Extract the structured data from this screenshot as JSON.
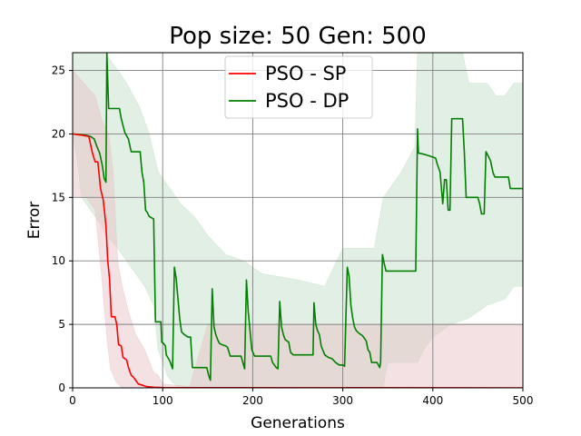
{
  "chart_data": {
    "type": "line",
    "title": "Pop size: 50  Gen: 500",
    "xlabel": "Generations",
    "ylabel": "Error",
    "xlim": [
      0,
      500
    ],
    "ylim": [
      0,
      26.4
    ],
    "xticks": [
      0,
      100,
      200,
      300,
      400,
      500
    ],
    "yticks": [
      0,
      5,
      10,
      15,
      20,
      25
    ],
    "grid": true,
    "legend_position": "top-center",
    "series": [
      {
        "name": "PSO - SP",
        "color": "#ff0000",
        "band_color": "#e8c4c8",
        "points": [
          [
            0,
            20.0
          ],
          [
            10,
            19.9
          ],
          [
            18,
            19.8
          ],
          [
            22,
            18.5
          ],
          [
            25,
            17.8
          ],
          [
            28,
            17.8
          ],
          [
            31,
            15.7
          ],
          [
            34,
            14.8
          ],
          [
            37,
            12.8
          ],
          [
            39,
            10.0
          ],
          [
            41,
            8.6
          ],
          [
            43,
            5.6
          ],
          [
            47,
            5.6
          ],
          [
            49,
            5.0
          ],
          [
            51,
            3.4
          ],
          [
            54,
            3.3
          ],
          [
            56,
            2.4
          ],
          [
            60,
            2.2
          ],
          [
            62,
            1.6
          ],
          [
            65,
            1.0
          ],
          [
            68,
            0.8
          ],
          [
            70,
            0.6
          ],
          [
            73,
            0.3
          ],
          [
            78,
            0.2
          ],
          [
            82,
            0.1
          ],
          [
            90,
            0.05
          ],
          [
            100,
            0.02
          ],
          [
            500,
            0.0
          ]
        ],
        "band_upper": [
          [
            0,
            25
          ],
          [
            25,
            23
          ],
          [
            33,
            21
          ],
          [
            40,
            20
          ],
          [
            45,
            17
          ],
          [
            50,
            10
          ],
          [
            55,
            8
          ],
          [
            62,
            6
          ],
          [
            70,
            4.2
          ],
          [
            80,
            3
          ],
          [
            90,
            1.2
          ],
          [
            95,
            1.0
          ],
          [
            100,
            0.3
          ],
          [
            130,
            0.1
          ],
          [
            150,
            5.0
          ],
          [
            500,
            5.0
          ]
        ],
        "band_lower": [
          [
            0,
            15
          ],
          [
            15,
            15
          ],
          [
            25,
            14
          ],
          [
            32,
            9
          ],
          [
            38,
            4
          ],
          [
            42,
            1.5
          ],
          [
            48,
            0.5
          ],
          [
            55,
            0
          ],
          [
            500,
            0
          ]
        ]
      },
      {
        "name": "PSO - DP",
        "color": "#008000",
        "band_color": "#c6dfc9",
        "points": [
          [
            0,
            20.0
          ],
          [
            15,
            19.9
          ],
          [
            20,
            19.8
          ],
          [
            24,
            19.6
          ],
          [
            27,
            19.0
          ],
          [
            30,
            18.5
          ],
          [
            33,
            17.5
          ],
          [
            35,
            16.5
          ],
          [
            37,
            16.2
          ],
          [
            38,
            26.4
          ],
          [
            40,
            22.0
          ],
          [
            47,
            22.0
          ],
          [
            52,
            22.0
          ],
          [
            54,
            21.2
          ],
          [
            58,
            20.1
          ],
          [
            62,
            19.6
          ],
          [
            65,
            18.6
          ],
          [
            75,
            18.6
          ],
          [
            77,
            17.0
          ],
          [
            79,
            16.2
          ],
          [
            81,
            14.0
          ],
          [
            83,
            13.8
          ],
          [
            85,
            13.5
          ],
          [
            90,
            13.3
          ],
          [
            92,
            5.2
          ],
          [
            98,
            5.2
          ],
          [
            99,
            3.6
          ],
          [
            101,
            3.5
          ],
          [
            103,
            3.3
          ],
          [
            104,
            2.6
          ],
          [
            108,
            2.1
          ],
          [
            111,
            1.5
          ],
          [
            113,
            9.5
          ],
          [
            115,
            8.6
          ],
          [
            117,
            7.0
          ],
          [
            119,
            5.4
          ],
          [
            121,
            4.4
          ],
          [
            124,
            4.2
          ],
          [
            128,
            4.0
          ],
          [
            131,
            4.0
          ],
          [
            133,
            1.6
          ],
          [
            149,
            1.6
          ],
          [
            151,
            1.0
          ],
          [
            153,
            0.6
          ],
          [
            155,
            7.8
          ],
          [
            157,
            4.8
          ],
          [
            159,
            4.2
          ],
          [
            161,
            3.8
          ],
          [
            163,
            3.5
          ],
          [
            166,
            3.4
          ],
          [
            170,
            3.3
          ],
          [
            172,
            3.2
          ],
          [
            175,
            2.5
          ],
          [
            187,
            2.5
          ],
          [
            189,
            2.0
          ],
          [
            191,
            1.5
          ],
          [
            193,
            8.5
          ],
          [
            195,
            6.0
          ],
          [
            197,
            4.5
          ],
          [
            199,
            3.0
          ],
          [
            202,
            2.5
          ],
          [
            220,
            2.5
          ],
          [
            222,
            2.0
          ],
          [
            224,
            1.8
          ],
          [
            226,
            1.6
          ],
          [
            228,
            1.5
          ],
          [
            230,
            6.8
          ],
          [
            232,
            4.8
          ],
          [
            234,
            4.2
          ],
          [
            236,
            3.8
          ],
          [
            240,
            3.6
          ],
          [
            242,
            2.8
          ],
          [
            245,
            2.6
          ],
          [
            250,
            2.6
          ],
          [
            267,
            2.6
          ],
          [
            268,
            6.7
          ],
          [
            270,
            5.0
          ],
          [
            272,
            4.5
          ],
          [
            274,
            4.2
          ],
          [
            276,
            3.3
          ],
          [
            280,
            2.6
          ],
          [
            284,
            2.4
          ],
          [
            288,
            2.3
          ],
          [
            292,
            2.0
          ],
          [
            296,
            1.8
          ],
          [
            300,
            1.8
          ],
          [
            302,
            1.7
          ],
          [
            305,
            9.5
          ],
          [
            307,
            8.8
          ],
          [
            309,
            6.5
          ],
          [
            311,
            5.5
          ],
          [
            313,
            4.8
          ],
          [
            315,
            4.5
          ],
          [
            318,
            4.3
          ],
          [
            322,
            4.1
          ],
          [
            324,
            3.9
          ],
          [
            326,
            3.7
          ],
          [
            328,
            3.0
          ],
          [
            330,
            2.8
          ],
          [
            332,
            2.0
          ],
          [
            338,
            2.0
          ],
          [
            341,
            1.6
          ],
          [
            342,
            2.0
          ],
          [
            344,
            10.5
          ],
          [
            346,
            9.8
          ],
          [
            348,
            9.2
          ],
          [
            360,
            9.2
          ],
          [
            381,
            9.2
          ],
          [
            383,
            20.4
          ],
          [
            384,
            18.5
          ],
          [
            390,
            18.4
          ],
          [
            395,
            18.3
          ],
          [
            403,
            18.1
          ],
          [
            405,
            17.6
          ],
          [
            408,
            17.0
          ],
          [
            411,
            14.5
          ],
          [
            413,
            16.4
          ],
          [
            415,
            16.4
          ],
          [
            417,
            14.0
          ],
          [
            419,
            14.0
          ],
          [
            421,
            21.2
          ],
          [
            433,
            21.2
          ],
          [
            435,
            18.5
          ],
          [
            437,
            15.0
          ],
          [
            450,
            15.0
          ],
          [
            452,
            14.5
          ],
          [
            454,
            13.7
          ],
          [
            457,
            13.7
          ],
          [
            459,
            18.6
          ],
          [
            464,
            17.9
          ],
          [
            467,
            16.9
          ],
          [
            469,
            16.6
          ],
          [
            484,
            16.6
          ],
          [
            486,
            15.7
          ],
          [
            500,
            15.7
          ]
        ],
        "band_upper": [
          [
            0,
            26.4
          ],
          [
            38,
            26.4
          ],
          [
            40,
            26
          ],
          [
            60,
            24
          ],
          [
            75,
            22
          ],
          [
            85,
            20
          ],
          [
            95,
            17
          ],
          [
            105,
            16
          ],
          [
            120,
            14.5
          ],
          [
            135,
            13.5
          ],
          [
            150,
            12
          ],
          [
            170,
            10.5
          ],
          [
            190,
            10
          ],
          [
            210,
            9
          ],
          [
            250,
            8.5
          ],
          [
            280,
            8
          ],
          [
            300,
            11
          ],
          [
            325,
            11
          ],
          [
            335,
            11
          ],
          [
            345,
            15
          ],
          [
            365,
            17
          ],
          [
            380,
            19
          ],
          [
            383,
            26.4
          ],
          [
            430,
            26.4
          ],
          [
            433,
            26.4
          ],
          [
            440,
            24
          ],
          [
            455,
            24
          ],
          [
            460,
            24
          ],
          [
            470,
            23
          ],
          [
            480,
            23
          ],
          [
            490,
            24
          ],
          [
            500,
            24
          ]
        ],
        "band_lower": [
          [
            0,
            20
          ],
          [
            5,
            18
          ],
          [
            10,
            15
          ],
          [
            20,
            14
          ],
          [
            30,
            13
          ],
          [
            38,
            12
          ],
          [
            50,
            11
          ],
          [
            60,
            10
          ],
          [
            70,
            9
          ],
          [
            80,
            8
          ],
          [
            90,
            6.5
          ],
          [
            95,
            3
          ],
          [
            100,
            2
          ],
          [
            105,
            1
          ],
          [
            110,
            0.5
          ],
          [
            115,
            0.2
          ],
          [
            120,
            0
          ],
          [
            345,
            0
          ],
          [
            347,
            1
          ],
          [
            350,
            2
          ],
          [
            360,
            2
          ],
          [
            383,
            2
          ],
          [
            390,
            3
          ],
          [
            400,
            4
          ],
          [
            420,
            5
          ],
          [
            440,
            5.5
          ],
          [
            460,
            6.5
          ],
          [
            480,
            7
          ],
          [
            490,
            8
          ],
          [
            500,
            8
          ]
        ]
      }
    ]
  }
}
